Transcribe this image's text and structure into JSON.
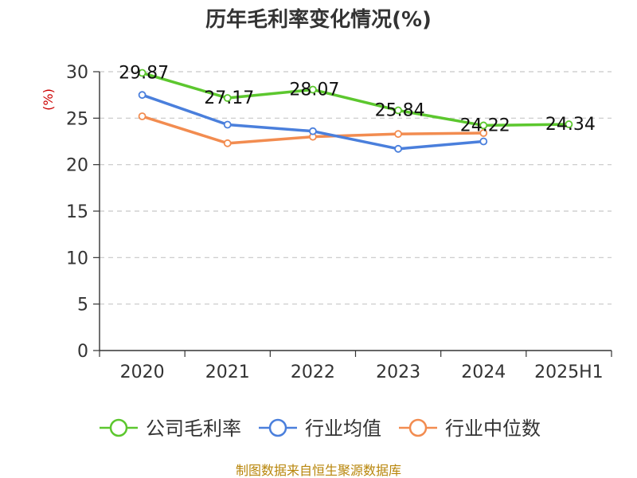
{
  "chart_data": {
    "type": "line",
    "title": "历年毛利率变化情况(%)",
    "ylabel": "(%)",
    "xlabel": "",
    "categories": [
      "2020",
      "2021",
      "2022",
      "2023",
      "2024",
      "2025H1"
    ],
    "ylim": [
      0,
      30
    ],
    "yticks": [
      0,
      5,
      10,
      15,
      20,
      25,
      30
    ],
    "grid": "horizontal-dashed",
    "legend_position": "bottom",
    "series": [
      {
        "name": "公司毛利率",
        "color": "#5cc72e",
        "values": [
          29.87,
          27.17,
          28.07,
          25.84,
          24.22,
          24.34
        ],
        "labels": [
          "29.87",
          "27.17",
          "28.07",
          "25.84",
          "24.22",
          "24.34"
        ]
      },
      {
        "name": "行业均值",
        "color": "#4a7fdc",
        "values": [
          27.5,
          24.3,
          23.6,
          21.7,
          22.5,
          null
        ]
      },
      {
        "name": "行业中位数",
        "color": "#f28c50",
        "values": [
          25.2,
          22.3,
          23.0,
          23.3,
          23.4,
          null
        ]
      }
    ]
  },
  "source_text": "制图数据来自恒生聚源数据库"
}
